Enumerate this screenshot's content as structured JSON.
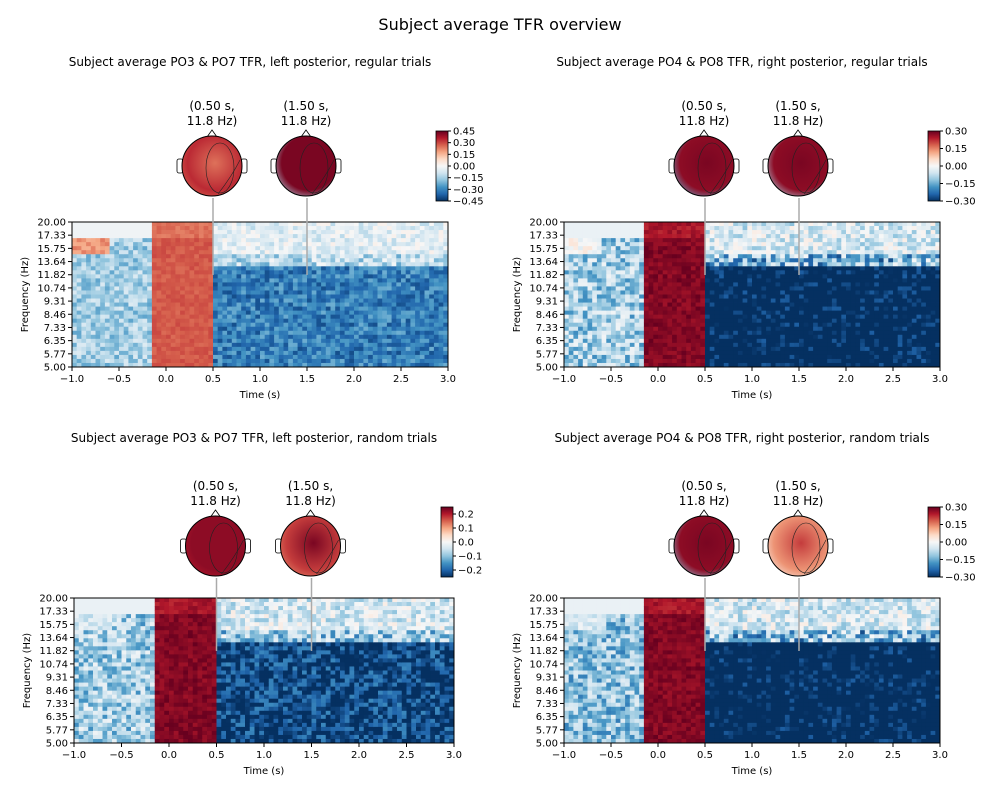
{
  "figure": {
    "title": "Subject average TFR overview"
  },
  "colors": {
    "neg": "#053061",
    "mid": "#f7f7f7",
    "pos": "#67001f",
    "axis": "#000000",
    "pointer": "#aaaaaa"
  },
  "chart_data": [
    {
      "type": "heatmap",
      "title": "Subject average PO3 & PO7 TFR, left posterior, regular trials",
      "xlabel": "Time (s)",
      "ylabel": "Frequency (Hz)",
      "xlim": [
        -1.0,
        3.0
      ],
      "ylim": [
        5.0,
        20.0
      ],
      "xticks": [
        -1.0,
        -0.5,
        0.0,
        0.5,
        1.0,
        1.5,
        2.0,
        2.5,
        3.0
      ],
      "xtick_labels": [
        "−1.0",
        "−0.5",
        "0.0",
        "0.5",
        "1.0",
        "1.5",
        "2.0",
        "2.5",
        "3.0"
      ],
      "yticks": [
        20.0,
        17.33,
        15.75,
        13.64,
        11.82,
        10.74,
        9.31,
        8.46,
        7.33,
        6.35,
        5.77,
        5.0
      ],
      "ytick_labels": [
        "20.00",
        "17.33",
        "15.75",
        "13.64",
        "11.82",
        "10.74",
        "9.31",
        "8.46",
        "7.33",
        "6.35",
        "5.77",
        "5.00"
      ],
      "color_range": [
        -0.45,
        0.45
      ],
      "colorbar_ticks": [
        0.45,
        0.3,
        0.15,
        0.0,
        -0.15,
        -0.3,
        -0.45
      ],
      "colorbar_tick_labels": [
        "0.45",
        "0.30",
        "0.15",
        "0.00",
        "−0.15",
        "−0.30",
        "−0.45"
      ],
      "topomaps": [
        {
          "label_line1": "(0.50 s,",
          "label_line2": "11.8 Hz)",
          "time": 0.5,
          "freq": 11.8,
          "level": 0.55,
          "right": 0.75,
          "edge": 0.6
        },
        {
          "label_line1": "(1.50 s,",
          "label_line2": "11.8 Hz)",
          "time": 1.5,
          "freq": 11.8,
          "level": 0.95,
          "right": 0.95,
          "edge": -0.3
        }
      ],
      "tfr": {
        "early_band": [
          -1.0,
          -0.6,
          15.5,
          19.0,
          0.2
        ],
        "baseline": -0.15,
        "evoked_level": 0.3,
        "post_level": -0.4,
        "upper_level": -0.05
      }
    },
    {
      "type": "heatmap",
      "title": "Subject average PO4 & PO8 TFR, right posterior, regular trials",
      "xlabel": "Time (s)",
      "ylabel": "Frequency (Hz)",
      "xlim": [
        -1.0,
        3.0
      ],
      "ylim": [
        5.0,
        20.0
      ],
      "xticks": [
        -1.0,
        -0.5,
        0.0,
        0.5,
        1.0,
        1.5,
        2.0,
        2.5,
        3.0
      ],
      "xtick_labels": [
        "−1.0",
        "−0.5",
        "0.0",
        "0.5",
        "1.0",
        "1.5",
        "2.0",
        "2.5",
        "3.0"
      ],
      "yticks": [
        20.0,
        17.33,
        15.75,
        13.64,
        11.82,
        10.74,
        9.31,
        8.46,
        7.33,
        6.35,
        5.77,
        5.0
      ],
      "ytick_labels": [
        "20.00",
        "17.33",
        "15.75",
        "13.64",
        "11.82",
        "10.74",
        "9.31",
        "8.46",
        "7.33",
        "6.35",
        "5.77",
        "5.00"
      ],
      "color_range": [
        -0.3,
        0.3
      ],
      "colorbar_ticks": [
        0.3,
        0.15,
        0.0,
        -0.15,
        -0.3
      ],
      "colorbar_tick_labels": [
        "0.30",
        "0.15",
        "0.00",
        "−0.15",
        "−0.30"
      ],
      "topomaps": [
        {
          "label_line1": "(0.50 s,",
          "label_line2": "11.8 Hz)",
          "time": 0.5,
          "freq": 11.8,
          "level": 0.95,
          "right": 0.9,
          "edge": -0.5
        },
        {
          "label_line1": "(1.50 s,",
          "label_line2": "11.8 Hz)",
          "time": 1.5,
          "freq": 11.8,
          "level": 0.95,
          "right": 0.9,
          "edge": -0.3
        }
      ],
      "tfr": {
        "early_band": [
          -1.0,
          -0.6,
          15.5,
          19.0,
          0.0
        ],
        "baseline": -0.1,
        "evoked_level": 0.3,
        "post_level": -0.45,
        "upper_level": -0.05
      }
    },
    {
      "type": "heatmap",
      "title": "Subject average PO3 & PO7 TFR, left posterior, random trials",
      "xlabel": "Time (s)",
      "ylabel": "Frequency (Hz)",
      "xlim": [
        -1.0,
        3.0
      ],
      "ylim": [
        5.0,
        20.0
      ],
      "xticks": [
        -1.0,
        -0.5,
        0.0,
        0.5,
        1.0,
        1.5,
        2.0,
        2.5,
        3.0
      ],
      "xtick_labels": [
        "−1.0",
        "−0.5",
        "0.0",
        "0.5",
        "1.0",
        "1.5",
        "2.0",
        "2.5",
        "3.0"
      ],
      "yticks": [
        20.0,
        17.33,
        15.75,
        13.64,
        11.82,
        10.74,
        9.31,
        8.46,
        7.33,
        6.35,
        5.77,
        5.0
      ],
      "ytick_labels": [
        "20.00",
        "17.33",
        "15.75",
        "13.64",
        "11.82",
        "10.74",
        "9.31",
        "8.46",
        "7.33",
        "6.35",
        "5.77",
        "5.00"
      ],
      "color_range": [
        -0.25,
        0.25
      ],
      "colorbar_ticks": [
        0.2,
        0.1,
        0.0,
        -0.1,
        -0.2
      ],
      "colorbar_tick_labels": [
        "0.2",
        "0.1",
        "0.0",
        "−0.1",
        "−0.2"
      ],
      "topomaps": [
        {
          "label_line1": "(0.50 s,",
          "label_line2": "11.8 Hz)",
          "time": 0.5,
          "freq": 11.8,
          "level": 0.9,
          "right": 0.9,
          "edge": 0.8
        },
        {
          "label_line1": "(1.50 s,",
          "label_line2": "11.8 Hz)",
          "time": 1.5,
          "freq": 11.8,
          "level": 0.95,
          "right": 0.7,
          "edge": 0.5
        }
      ],
      "tfr": {
        "early_band": [
          -1.0,
          -0.6,
          15.5,
          19.0,
          -0.05
        ],
        "baseline": -0.1,
        "evoked_level": 0.3,
        "post_level": -0.35,
        "upper_level": -0.05
      }
    },
    {
      "type": "heatmap",
      "title": "Subject average PO4 & PO8 TFR, right posterior, random trials",
      "xlabel": "Time (s)",
      "ylabel": "Frequency (Hz)",
      "xlim": [
        -1.0,
        3.0
      ],
      "ylim": [
        5.0,
        20.0
      ],
      "xticks": [
        -1.0,
        -0.5,
        0.0,
        0.5,
        1.0,
        1.5,
        2.0,
        2.5,
        3.0
      ],
      "xtick_labels": [
        "−1.0",
        "−0.5",
        "0.0",
        "0.5",
        "1.0",
        "1.5",
        "2.0",
        "2.5",
        "3.0"
      ],
      "yticks": [
        20.0,
        17.33,
        15.75,
        13.64,
        11.82,
        10.74,
        9.31,
        8.46,
        7.33,
        6.35,
        5.77,
        5.0
      ],
      "ytick_labels": [
        "20.00",
        "17.33",
        "15.75",
        "13.64",
        "11.82",
        "10.74",
        "9.31",
        "8.46",
        "7.33",
        "6.35",
        "5.77",
        "5.00"
      ],
      "color_range": [
        -0.3,
        0.3
      ],
      "colorbar_ticks": [
        0.3,
        0.15,
        0.0,
        -0.15,
        -0.3
      ],
      "colorbar_tick_labels": [
        "0.30",
        "0.15",
        "0.00",
        "−0.15",
        "−0.30"
      ],
      "topomaps": [
        {
          "label_line1": "(0.50 s,",
          "label_line2": "11.8 Hz)",
          "time": 0.5,
          "freq": 11.8,
          "level": 0.95,
          "right": 0.9,
          "edge": -0.4
        },
        {
          "label_line1": "(1.50 s,",
          "label_line2": "11.8 Hz)",
          "time": 1.5,
          "freq": 11.8,
          "level": 0.7,
          "right": 0.45,
          "edge": 0.1
        }
      ],
      "tfr": {
        "early_band": [
          -1.0,
          -0.6,
          15.5,
          19.0,
          -0.05
        ],
        "baseline": -0.12,
        "evoked_level": 0.3,
        "post_level": -0.45,
        "upper_level": -0.05
      }
    }
  ]
}
